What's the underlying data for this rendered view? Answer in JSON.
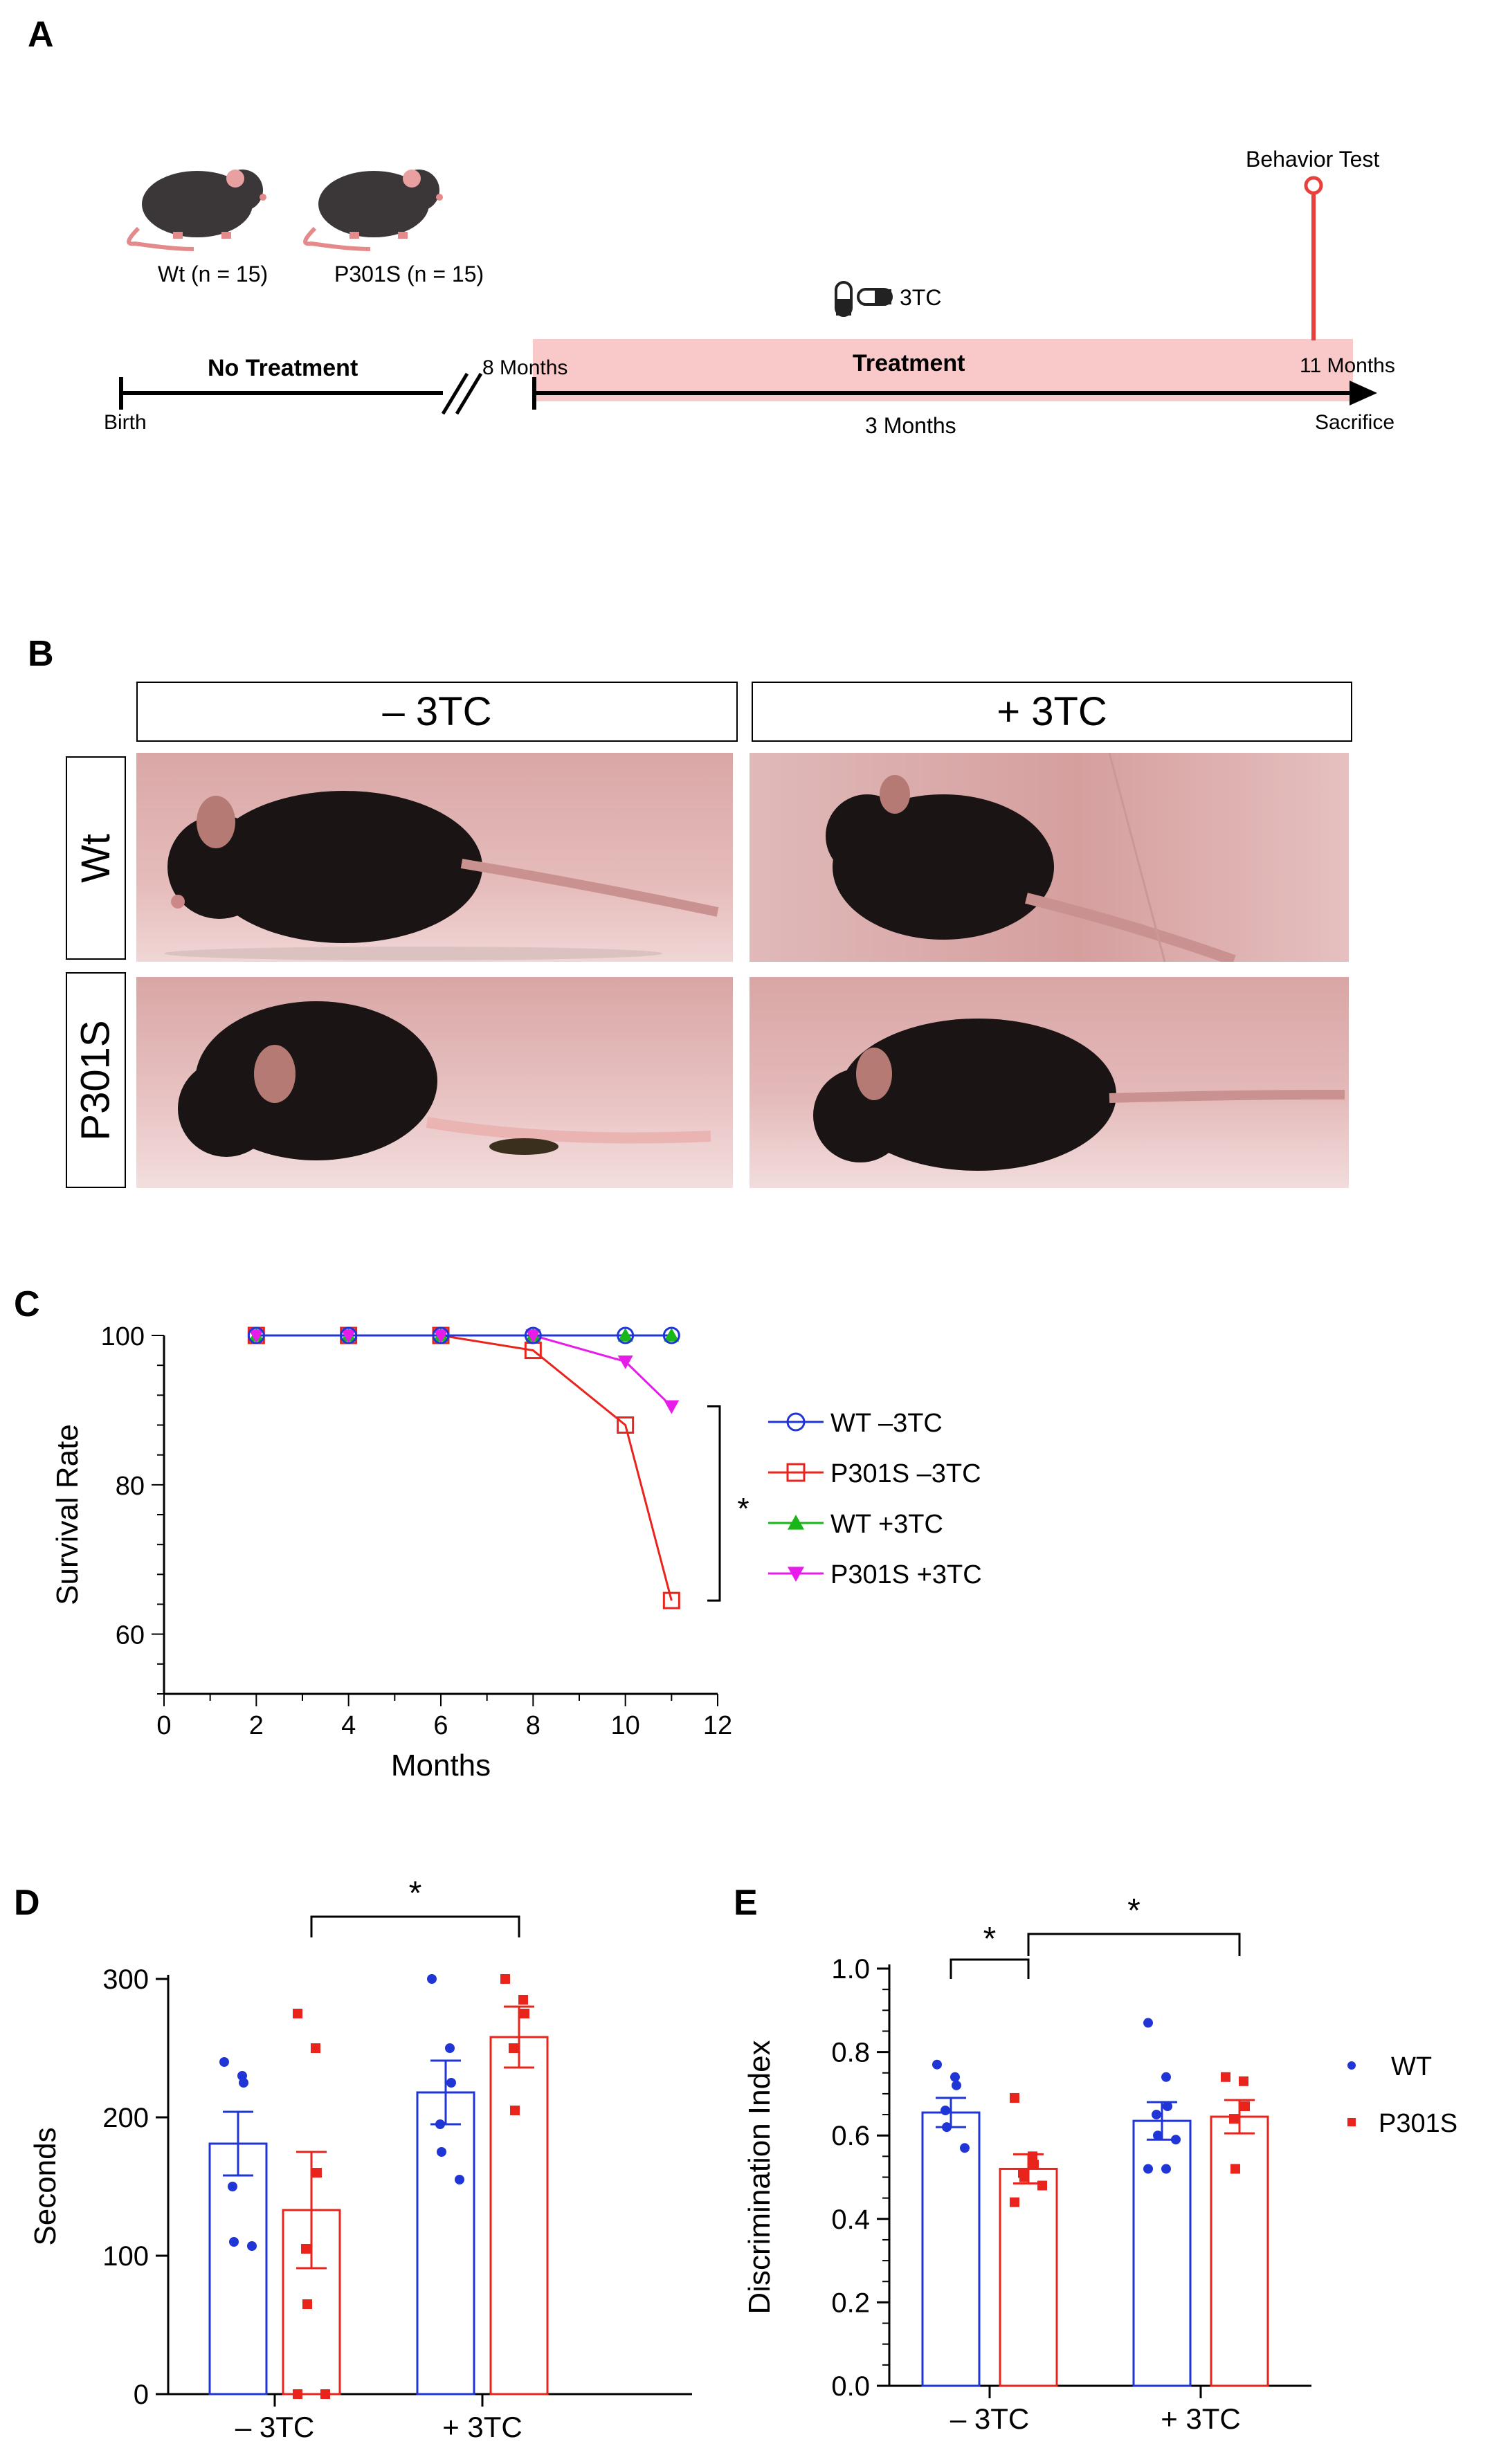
{
  "panels": {
    "a": "A",
    "b": "B",
    "c": "C",
    "d": "D",
    "e": "E"
  },
  "timeline": {
    "mouse_wt": "Wt (n = 15)",
    "mouse_p301s": "P301S (n = 15)",
    "drug": "3TC",
    "behavior_test": "Behavior Test",
    "no_treatment": "No Treatment",
    "eight_months": "8 Months",
    "treatment": "Treatment",
    "eleven_months": "11 Months",
    "birth": "Birth",
    "three_months": "3 Months",
    "sacrifice": "Sacrifice",
    "colors": {
      "treatment_band": "#f9c9c9",
      "marker": "#e8403b"
    }
  },
  "photos": {
    "col_minus": "– 3TC",
    "col_plus": "+ 3TC",
    "row_wt": "Wt",
    "row_p301s": "P301S"
  },
  "chart_data": [
    {
      "type": "line",
      "panel": "C",
      "xlabel": "Months",
      "ylabel": "Survival Rate",
      "xlim": [
        0,
        12
      ],
      "ylim": [
        52,
        100
      ],
      "xticks": [
        0,
        2,
        4,
        6,
        8,
        10,
        12
      ],
      "yticks": [
        60,
        80,
        100
      ],
      "annotation": "*",
      "series": [
        {
          "name": "WT –3TC",
          "color": "#1f35d6",
          "marker": "circle-open",
          "x": [
            2,
            4,
            6,
            8,
            10,
            11
          ],
          "y": [
            100,
            100,
            100,
            100,
            100,
            100
          ]
        },
        {
          "name": "P301S –3TC",
          "color": "#e8241c",
          "marker": "square-open",
          "x": [
            2,
            4,
            6,
            8,
            10,
            11
          ],
          "y": [
            100,
            100,
            100,
            98,
            88,
            64.5
          ]
        },
        {
          "name": "WT +3TC",
          "color": "#18b618",
          "marker": "triangle-up",
          "x": [
            2,
            4,
            6,
            8,
            10,
            11
          ],
          "y": [
            100,
            100,
            100,
            100,
            100,
            100
          ]
        },
        {
          "name": "P301S +3TC",
          "color": "#e81ce8",
          "marker": "triangle-down",
          "x": [
            2,
            4,
            6,
            8,
            10,
            11
          ],
          "y": [
            100,
            100,
            100,
            100,
            96.5,
            90.5
          ]
        }
      ]
    },
    {
      "type": "bar",
      "panel": "D",
      "ylabel": "Seconds",
      "ylim": [
        0,
        300
      ],
      "yticks": [
        0,
        100,
        200,
        300
      ],
      "categories": [
        "– 3TC",
        "+ 3TC"
      ],
      "annotation": "*",
      "series": [
        {
          "name": "WT",
          "color": "#1f35d6",
          "values": [
            181,
            218
          ],
          "sem": [
            23,
            23
          ],
          "points": [
            [
              240,
              230,
              225,
              150,
              110,
              107
            ],
            [
              300,
              250,
              225,
              195,
              175,
              155
            ]
          ]
        },
        {
          "name": "P301S",
          "color": "#e8241c",
          "values": [
            133,
            258
          ],
          "sem": [
            42,
            22
          ],
          "points": [
            [
              275,
              250,
              160,
              105,
              65,
              0,
              0
            ],
            [
              300,
              285,
              275,
              250,
              205
            ]
          ]
        }
      ]
    },
    {
      "type": "bar",
      "panel": "E",
      "ylabel": "Discrimination Index",
      "ylim": [
        0,
        1.0
      ],
      "yticks": [
        0.0,
        0.2,
        0.4,
        0.6,
        0.8,
        1.0
      ],
      "categories": [
        "– 3TC",
        "+ 3TC"
      ],
      "annotations": [
        "*",
        "*"
      ],
      "series": [
        {
          "name": "WT",
          "color": "#1f35d6",
          "values": [
            0.655,
            0.635
          ],
          "sem": [
            0.035,
            0.045
          ],
          "points": [
            [
              0.77,
              0.74,
              0.72,
              0.66,
              0.62,
              0.57
            ],
            [
              0.87,
              0.74,
              0.67,
              0.65,
              0.6,
              0.59,
              0.52,
              0.52
            ]
          ]
        },
        {
          "name": "P301S",
          "color": "#e8241c",
          "values": [
            0.52,
            0.645
          ],
          "sem": [
            0.035,
            0.04
          ],
          "points": [
            [
              0.69,
              0.55,
              0.53,
              0.51,
              0.5,
              0.48,
              0.44
            ],
            [
              0.74,
              0.73,
              0.67,
              0.64,
              0.52
            ]
          ]
        }
      ]
    }
  ]
}
